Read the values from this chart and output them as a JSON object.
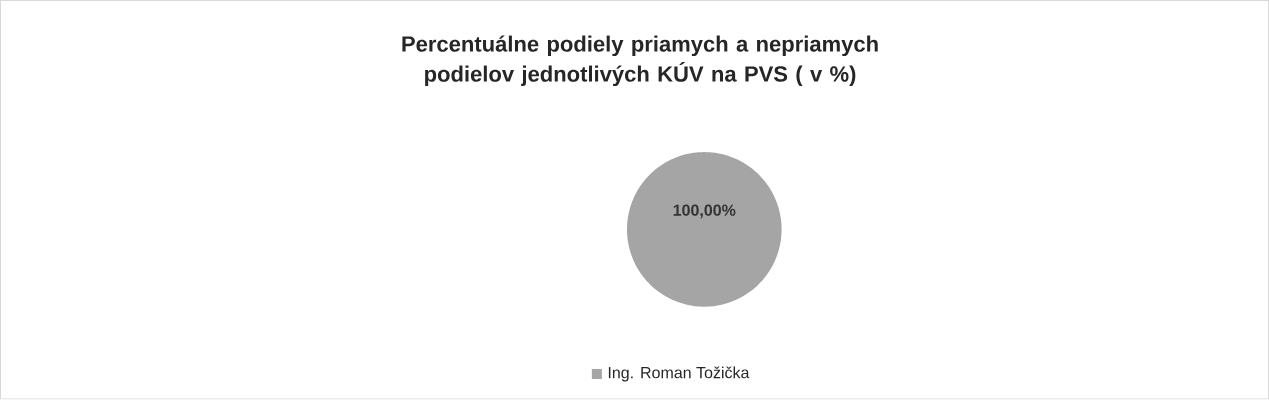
{
  "chart_data": {
    "type": "pie",
    "title": "Percentuálne podiely priamych a nepriamych podielov jednotlivých KÚV na PVS ( v %)",
    "categories": [
      "Ing. Roman Tožička"
    ],
    "values": [
      100
    ],
    "colors": [
      "#a5a5a5"
    ],
    "value_labels": [
      "100,00%"
    ],
    "legend": "bottom"
  }
}
